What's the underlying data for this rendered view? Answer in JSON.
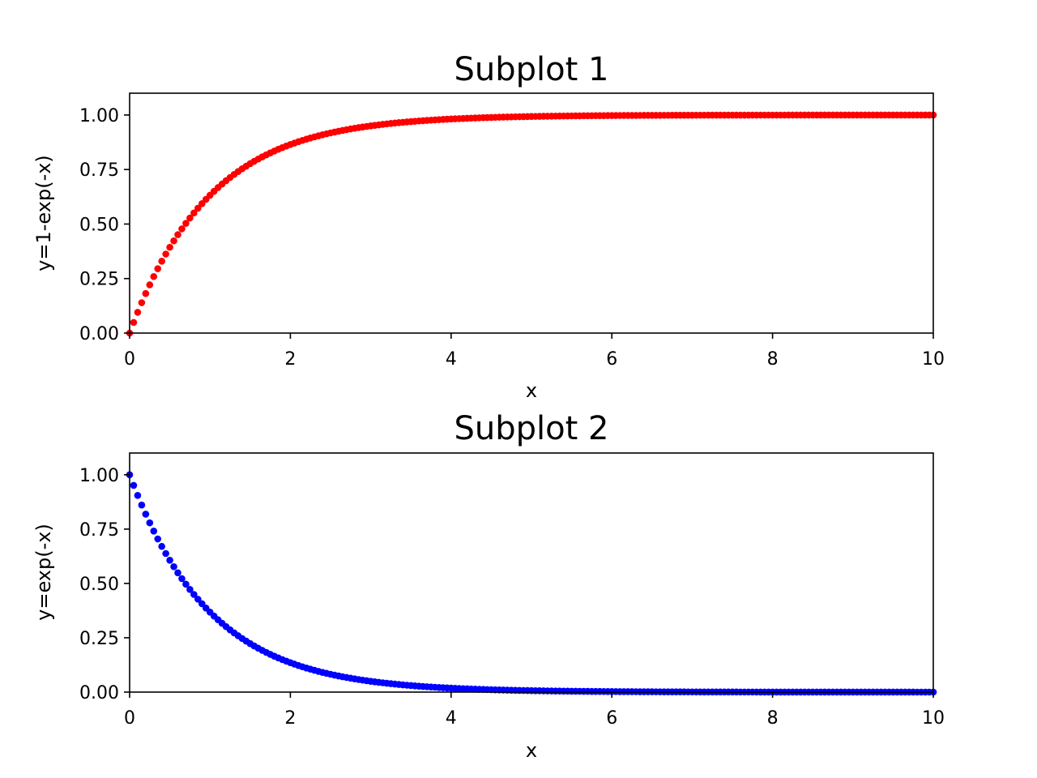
{
  "chart_data": [
    {
      "type": "scatter",
      "title": "Subplot 1",
      "xlabel": "x",
      "ylabel": "y=1-exp(-x)",
      "xlim": [
        0,
        10
      ],
      "ylim": [
        0,
        1.1
      ],
      "xticks": [
        "0",
        "2",
        "4",
        "6",
        "8",
        "10"
      ],
      "xtick_values": [
        0,
        2,
        4,
        6,
        8,
        10
      ],
      "yticks": [
        "0.00",
        "0.25",
        "0.50",
        "0.75",
        "1.00"
      ],
      "ytick_values": [
        0,
        0.25,
        0.5,
        0.75,
        1.0
      ],
      "grid": false,
      "color": "#ff0000",
      "function": "1-exp(-x)",
      "x_start": 0,
      "x_step": 0.05,
      "n_points": 201
    },
    {
      "type": "scatter",
      "title": "Subplot 2",
      "xlabel": "x",
      "ylabel": "y=exp(-x)",
      "xlim": [
        0,
        10
      ],
      "ylim": [
        0,
        1.1
      ],
      "xticks": [
        "0",
        "2",
        "4",
        "6",
        "8",
        "10"
      ],
      "xtick_values": [
        0,
        2,
        4,
        6,
        8,
        10
      ],
      "yticks": [
        "0.00",
        "0.25",
        "0.50",
        "0.75",
        "1.00"
      ],
      "ytick_values": [
        0,
        0.25,
        0.5,
        0.75,
        1.0
      ],
      "grid": false,
      "color": "#0000ff",
      "function": "exp(-x)",
      "x_start": 0,
      "x_step": 0.05,
      "n_points": 201
    }
  ]
}
